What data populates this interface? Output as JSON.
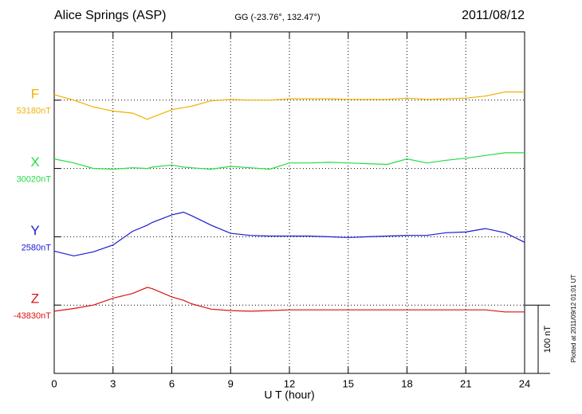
{
  "chart_data": {
    "type": "line",
    "title": "Alice Springs (ASP)",
    "subtitle": "GG (-23.76°, 132.47°)",
    "date": "2011/08/12",
    "x_label": "U T (hour)",
    "footnote": "Plotted at 2011/09/12 01:01 UT",
    "xlim": [
      0,
      24
    ],
    "xticks": [
      0,
      3,
      6,
      9,
      12,
      15,
      18,
      21,
      24
    ],
    "ylim": [
      -100,
      400
    ],
    "grid": true,
    "scale_bar": {
      "value": 100,
      "label": "100 nT"
    },
    "x": [
      0,
      1,
      2,
      3,
      4,
      4.75,
      5,
      6,
      6.6,
      7,
      8,
      9,
      10,
      11,
      12,
      13,
      14,
      15,
      16,
      17,
      18,
      19,
      20,
      21,
      22,
      23,
      24
    ],
    "series": [
      {
        "name": "F",
        "baseline_label": "53180nT",
        "offset": 300,
        "color": "#f0b000",
        "values": [
          8,
          0,
          -10,
          -16,
          -19,
          -28,
          -25,
          -14,
          -11,
          -9,
          -1,
          1,
          0,
          0,
          2,
          2,
          2,
          1,
          1,
          1,
          3,
          1,
          2,
          3,
          6,
          12,
          12
        ]
      },
      {
        "name": "X",
        "baseline_label": "30020nT",
        "offset": 200,
        "color": "#22dd44",
        "values": [
          14,
          8,
          0,
          -1,
          1,
          0,
          2,
          5,
          2,
          1,
          -1,
          3,
          1,
          -1,
          8,
          8,
          9,
          8,
          7,
          6,
          14,
          8,
          12,
          15,
          19,
          23,
          23
        ]
      },
      {
        "name": "Y",
        "baseline_label": "2580nT",
        "offset": 100,
        "color": "#1a1ad0",
        "values": [
          -21,
          -28,
          -22,
          -12,
          8,
          17,
          21,
          32,
          36,
          31,
          17,
          5,
          2,
          1,
          1,
          1,
          0,
          -1,
          0,
          1,
          2,
          2,
          6,
          7,
          12,
          6,
          -8
        ]
      },
      {
        "name": "Z",
        "baseline_label": "-43830nT",
        "offset": 0,
        "color": "#dd1111",
        "values": [
          -9,
          -5,
          0,
          10,
          17,
          26,
          24,
          12,
          7,
          2,
          -6,
          -8,
          -9,
          -8,
          -7,
          -7,
          -7,
          -7,
          -7,
          -7,
          -7,
          -7,
          -7,
          -7,
          -7,
          -10,
          -10
        ]
      }
    ]
  }
}
